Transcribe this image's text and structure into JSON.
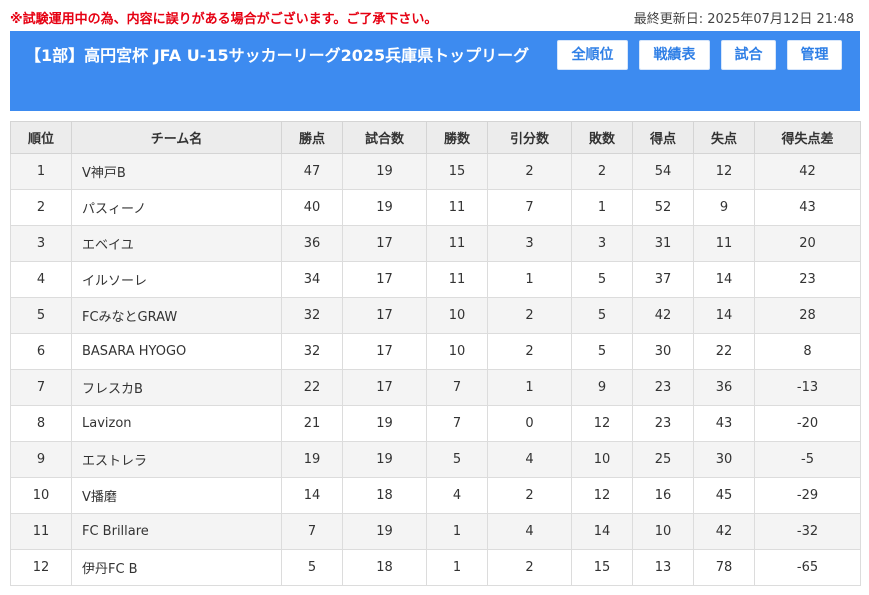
{
  "notice": "※試験運用中の為、内容に誤りがある場合がございます。ご了承下さい。",
  "last_updated": "最終更新日: 2025年07月12日 21:48",
  "header": {
    "title": "【1部】高円宮杯 JFA U-15サッカーリーグ2025兵庫県トップリーグ",
    "accent_color": "#3d8bf0"
  },
  "nav": {
    "standings": "全順位",
    "results": "戦績表",
    "matches": "試合",
    "admin": "管理"
  },
  "table": {
    "headers": [
      "順位",
      "チーム名",
      "勝点",
      "試合数",
      "勝数",
      "引分数",
      "敗数",
      "得点",
      "失点",
      "得失点差"
    ],
    "rows": [
      [
        "1",
        "V神戸B",
        "47",
        "19",
        "15",
        "2",
        "2",
        "54",
        "12",
        "42"
      ],
      [
        "2",
        "パスィーノ",
        "40",
        "19",
        "11",
        "7",
        "1",
        "52",
        "9",
        "43"
      ],
      [
        "3",
        "エベイユ",
        "36",
        "17",
        "11",
        "3",
        "3",
        "31",
        "11",
        "20"
      ],
      [
        "4",
        "イルソーレ",
        "34",
        "17",
        "11",
        "1",
        "5",
        "37",
        "14",
        "23"
      ],
      [
        "5",
        "FCみなとGRAW",
        "32",
        "17",
        "10",
        "2",
        "5",
        "42",
        "14",
        "28"
      ],
      [
        "6",
        "BASARA HYOGO",
        "32",
        "17",
        "10",
        "2",
        "5",
        "30",
        "22",
        "8"
      ],
      [
        "7",
        "フレスカB",
        "22",
        "17",
        "7",
        "1",
        "9",
        "23",
        "36",
        "-13"
      ],
      [
        "8",
        "Lavizon",
        "21",
        "19",
        "7",
        "0",
        "12",
        "23",
        "43",
        "-20"
      ],
      [
        "9",
        "エストレラ",
        "19",
        "19",
        "5",
        "4",
        "10",
        "25",
        "30",
        "-5"
      ],
      [
        "10",
        "V播磨",
        "14",
        "18",
        "4",
        "2",
        "12",
        "16",
        "45",
        "-29"
      ],
      [
        "11",
        "FC Brillare",
        "7",
        "19",
        "1",
        "4",
        "14",
        "10",
        "42",
        "-32"
      ],
      [
        "12",
        "伊丹FC B",
        "5",
        "18",
        "1",
        "2",
        "15",
        "13",
        "78",
        "-65"
      ]
    ]
  }
}
